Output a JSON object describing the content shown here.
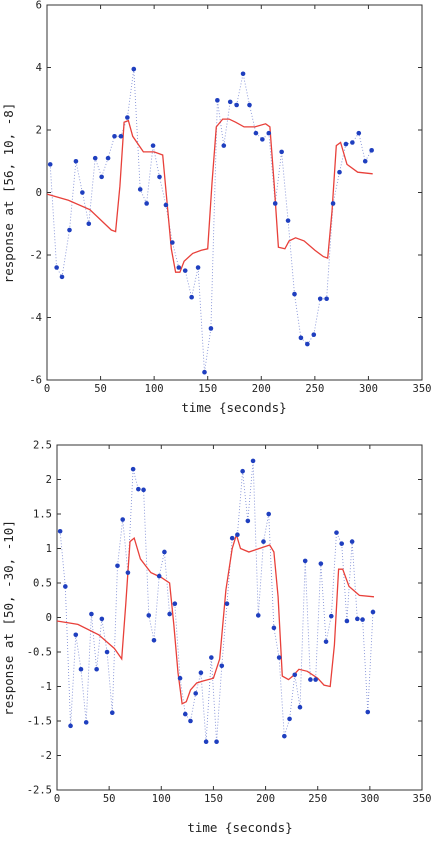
{
  "chart_data": [
    {
      "type": "line",
      "xlabel": "time {seconds}",
      "ylabel": "response at [56, 10, -8]",
      "xlim": [
        0,
        350
      ],
      "ylim": [
        -6,
        6
      ],
      "xticks": [
        0,
        50,
        100,
        150,
        200,
        250,
        300,
        350
      ],
      "yticks": [
        -6,
        -4,
        -2,
        0,
        2,
        4,
        6
      ],
      "grid": false,
      "colors": {
        "points": "#1f3fbf",
        "dotted": "#6f7fd0",
        "fit": "#e8403a"
      },
      "series": [
        {
          "style": "points-dotted",
          "x": [
            3,
            9,
            14,
            21,
            27,
            33,
            39,
            45,
            51,
            57,
            63,
            69,
            75,
            81,
            87,
            93,
            99,
            105,
            111,
            117,
            123,
            129,
            135,
            141,
            147,
            153,
            159,
            165,
            171,
            177,
            183,
            189,
            195,
            201,
            207,
            213,
            219,
            225,
            231,
            237,
            243,
            249,
            255,
            261,
            267,
            273,
            279,
            285,
            291,
            297,
            303
          ],
          "y": [
            0.9,
            -2.4,
            -2.7,
            -1.2,
            1.0,
            0.0,
            -1.0,
            1.1,
            0.5,
            1.1,
            1.8,
            1.8,
            2.4,
            3.95,
            0.1,
            -0.35,
            1.5,
            0.5,
            -0.4,
            -1.6,
            -2.4,
            -2.5,
            -3.35,
            -2.4,
            -5.75,
            -4.35,
            2.95,
            1.5,
            2.9,
            2.8,
            3.8,
            2.8,
            1.9,
            1.7,
            1.9,
            -0.35,
            1.3,
            -0.9,
            -3.25,
            -4.65,
            -4.85,
            -4.55,
            -3.4,
            -3.4,
            -0.35,
            0.65,
            1.55,
            1.6,
            1.9,
            1.0,
            1.35
          ]
        },
        {
          "style": "fit-line",
          "x": [
            0,
            20,
            40,
            60,
            64,
            68,
            72,
            76,
            80,
            90,
            100,
            108,
            112,
            116,
            120,
            124,
            128,
            136,
            144,
            150,
            154,
            158,
            164,
            170,
            176,
            184,
            194,
            204,
            208,
            212,
            216,
            222,
            226,
            232,
            240,
            250,
            258,
            262,
            266,
            270,
            274,
            280,
            290,
            304
          ],
          "y": [
            -0.05,
            -0.25,
            -0.55,
            -1.2,
            -1.25,
            0.2,
            2.25,
            2.3,
            1.8,
            1.3,
            1.3,
            1.2,
            -0.3,
            -1.8,
            -2.55,
            -2.55,
            -2.2,
            -1.95,
            -1.85,
            -1.8,
            0.3,
            2.1,
            2.35,
            2.35,
            2.25,
            2.1,
            2.1,
            2.2,
            2.1,
            0.3,
            -1.75,
            -1.8,
            -1.55,
            -1.45,
            -1.55,
            -1.85,
            -2.05,
            -2.1,
            -0.6,
            1.5,
            1.6,
            0.9,
            0.65,
            0.6
          ]
        }
      ]
    },
    {
      "type": "line",
      "xlabel": "time {seconds}",
      "ylabel": "response at [50, -30, -10]",
      "xlim": [
        0,
        350
      ],
      "ylim": [
        -2.5,
        2.5
      ],
      "xticks": [
        0,
        50,
        100,
        150,
        200,
        250,
        300,
        350
      ],
      "yticks": [
        -2.5,
        -2,
        -1.5,
        -1,
        -0.5,
        0,
        0.5,
        1,
        1.5,
        2,
        2.5
      ],
      "grid": false,
      "colors": {
        "points": "#1f3fbf",
        "dotted": "#6f7fd0",
        "fit": "#e8403a"
      },
      "series": [
        {
          "style": "points-dotted",
          "x": [
            3,
            8,
            13,
            18,
            23,
            28,
            33,
            38,
            43,
            48,
            53,
            58,
            63,
            68,
            73,
            78,
            83,
            88,
            93,
            98,
            103,
            108,
            113,
            118,
            123,
            128,
            133,
            138,
            143,
            148,
            153,
            158,
            163,
            168,
            173,
            178,
            183,
            188,
            193,
            198,
            203,
            208,
            213,
            218,
            223,
            228,
            233,
            238,
            243,
            248,
            253,
            258,
            263,
            268,
            273,
            278,
            283,
            288,
            293,
            298,
            303
          ],
          "y": [
            1.25,
            0.45,
            -1.57,
            -0.25,
            -0.75,
            -1.52,
            0.05,
            -0.75,
            -0.02,
            -0.5,
            -1.38,
            0.75,
            1.42,
            0.65,
            2.15,
            1.86,
            1.85,
            0.03,
            -0.33,
            0.6,
            0.95,
            0.05,
            0.2,
            -0.88,
            -1.4,
            -1.5,
            -1.1,
            -0.8,
            -1.8,
            -0.58,
            -1.8,
            -0.7,
            0.2,
            1.15,
            1.2,
            2.12,
            1.4,
            2.27,
            0.03,
            1.1,
            1.5,
            -0.15,
            -0.58,
            -1.72,
            -1.47,
            -0.83,
            -1.3,
            0.82,
            -0.9,
            -0.9,
            0.78,
            -0.35,
            0.02,
            1.23,
            1.07,
            -0.05,
            1.1,
            -0.02,
            -0.03,
            -1.37,
            0.08
          ]
        },
        {
          "style": "fit-line",
          "x": [
            0,
            20,
            40,
            55,
            62,
            66,
            70,
            74,
            80,
            90,
            100,
            108,
            112,
            116,
            120,
            124,
            128,
            134,
            140,
            150,
            156,
            162,
            168,
            172,
            176,
            184,
            194,
            204,
            208,
            212,
            216,
            222,
            226,
            232,
            240,
            250,
            256,
            262,
            266,
            270,
            274,
            280,
            290,
            304
          ],
          "y": [
            -0.05,
            -0.1,
            -0.25,
            -0.45,
            -0.6,
            0.2,
            1.1,
            1.15,
            0.85,
            0.65,
            0.58,
            0.5,
            -0.1,
            -0.8,
            -1.25,
            -1.22,
            -1.05,
            -0.95,
            -0.92,
            -0.88,
            -0.6,
            0.4,
            1.0,
            1.2,
            1.0,
            0.95,
            1.0,
            1.05,
            0.95,
            0.3,
            -0.85,
            -0.9,
            -0.85,
            -0.75,
            -0.78,
            -0.88,
            -0.98,
            -1.0,
            -0.4,
            0.7,
            0.7,
            0.45,
            0.32,
            0.3
          ]
        }
      ]
    }
  ]
}
